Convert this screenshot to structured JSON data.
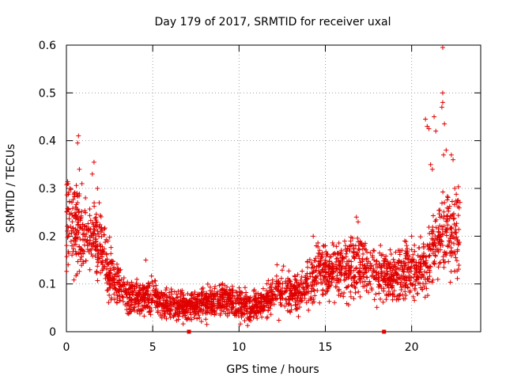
{
  "chart_data": {
    "type": "scatter",
    "title": "Day 179 of 2017, SRMTID for receiver uxal",
    "xlabel": "GPS time / hours",
    "ylabel": "SRMTID / TECUs",
    "xlim": [
      0,
      24
    ],
    "ylim": [
      0,
      0.6
    ],
    "x_ticks": [
      "0",
      "5",
      "10",
      "15",
      "20"
    ],
    "y_ticks": [
      "0",
      "0.1",
      "0.2",
      "0.3",
      "0.4",
      "0.5",
      "0.6"
    ],
    "grid": true,
    "marker": "+",
    "color": "#e00000",
    "series": [
      {
        "name": "SRMTID",
        "trend": [
          [
            0.0,
            0.23
          ],
          [
            0.5,
            0.21
          ],
          [
            1.0,
            0.19
          ],
          [
            1.5,
            0.2
          ],
          [
            2.0,
            0.18
          ],
          [
            2.5,
            0.12
          ],
          [
            3.0,
            0.1
          ],
          [
            3.5,
            0.08
          ],
          [
            4.0,
            0.07
          ],
          [
            4.5,
            0.07
          ],
          [
            5.0,
            0.08
          ],
          [
            5.5,
            0.06
          ],
          [
            6.0,
            0.055
          ],
          [
            6.5,
            0.055
          ],
          [
            7.0,
            0.05
          ],
          [
            7.5,
            0.06
          ],
          [
            8.0,
            0.06
          ],
          [
            8.5,
            0.065
          ],
          [
            9.0,
            0.07
          ],
          [
            9.5,
            0.065
          ],
          [
            10.0,
            0.06
          ],
          [
            10.5,
            0.05
          ],
          [
            11.0,
            0.055
          ],
          [
            11.5,
            0.065
          ],
          [
            12.0,
            0.08
          ],
          [
            12.5,
            0.085
          ],
          [
            13.0,
            0.08
          ],
          [
            13.5,
            0.085
          ],
          [
            14.0,
            0.1
          ],
          [
            14.5,
            0.12
          ],
          [
            15.0,
            0.125
          ],
          [
            15.5,
            0.13
          ],
          [
            16.0,
            0.13
          ],
          [
            16.5,
            0.135
          ],
          [
            17.0,
            0.14
          ],
          [
            17.5,
            0.13
          ],
          [
            18.0,
            0.12
          ],
          [
            18.5,
            0.11
          ],
          [
            19.0,
            0.12
          ],
          [
            19.5,
            0.125
          ],
          [
            20.0,
            0.13
          ],
          [
            20.5,
            0.13
          ],
          [
            21.0,
            0.15
          ],
          [
            21.5,
            0.2
          ],
          [
            22.0,
            0.2
          ],
          [
            22.5,
            0.2
          ],
          [
            22.8,
            0.21
          ]
        ],
        "outliers": [
          [
            21.8,
            0.595
          ],
          [
            21.8,
            0.5
          ],
          [
            21.8,
            0.48
          ],
          [
            21.75,
            0.47
          ],
          [
            21.9,
            0.435
          ],
          [
            20.8,
            0.445
          ],
          [
            20.9,
            0.43
          ],
          [
            21.3,
            0.45
          ],
          [
            21.4,
            0.42
          ],
          [
            21.0,
            0.425
          ],
          [
            0.7,
            0.41
          ],
          [
            0.65,
            0.395
          ],
          [
            22.0,
            0.38
          ],
          [
            21.85,
            0.37
          ],
          [
            22.3,
            0.37
          ],
          [
            22.4,
            0.36
          ],
          [
            0.75,
            0.34
          ],
          [
            1.6,
            0.355
          ],
          [
            1.5,
            0.33
          ],
          [
            0.9,
            0.31
          ],
          [
            1.8,
            0.3
          ],
          [
            1.9,
            0.27
          ],
          [
            0.2,
            0.3
          ],
          [
            0.1,
            0.31
          ],
          [
            22.5,
            0.3
          ],
          [
            21.2,
            0.34
          ],
          [
            21.1,
            0.35
          ],
          [
            16.8,
            0.24
          ],
          [
            16.9,
            0.23
          ],
          [
            14.3,
            0.2
          ],
          [
            20.0,
            0.2
          ],
          [
            19.6,
            0.19
          ],
          [
            15.0,
            0.18
          ],
          [
            12.2,
            0.14
          ],
          [
            4.6,
            0.15
          ]
        ]
      }
    ],
    "bottom_markers": [
      7.1,
      18.4
    ]
  }
}
